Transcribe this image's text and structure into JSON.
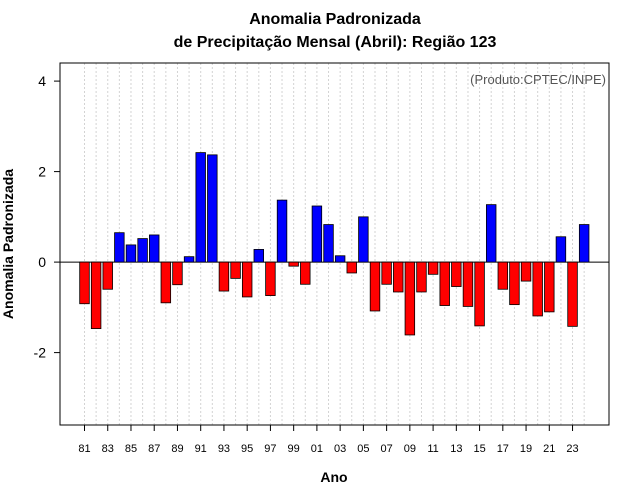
{
  "chart_data": {
    "type": "bar",
    "title_line1": "Anomalia Padronizada",
    "title_line2": "de Precipitação Mensal (Abril): Região 123",
    "xlabel": "Ano",
    "ylabel": "Anomalia Padronizada",
    "credit": "(Produto:CPTEC/INPE)",
    "ylim": [
      -3.6,
      4.4
    ],
    "yticks": [
      -2,
      0,
      2,
      4
    ],
    "yticks_labels": [
      "-2",
      "0",
      "2",
      "4"
    ],
    "grid": "vertical dotted",
    "colors": {
      "positive": "#0000ff",
      "negative": "#ff0000"
    },
    "categories": [
      "81",
      "82",
      "83",
      "84",
      "85",
      "86",
      "87",
      "88",
      "89",
      "90",
      "91",
      "92",
      "93",
      "94",
      "95",
      "96",
      "97",
      "98",
      "99",
      "00",
      "01",
      "02",
      "03",
      "04",
      "05",
      "06",
      "07",
      "08",
      "09",
      "10",
      "11",
      "12",
      "13",
      "14",
      "15",
      "16",
      "17",
      "18",
      "19",
      "20",
      "21",
      "22",
      "23",
      "24"
    ],
    "values": [
      -0.92,
      -1.47,
      -0.6,
      0.65,
      0.38,
      0.52,
      0.6,
      -0.9,
      -0.5,
      0.12,
      2.42,
      2.37,
      -0.64,
      -0.36,
      -0.77,
      0.28,
      -0.74,
      1.37,
      -0.09,
      -0.49,
      1.24,
      0.83,
      0.14,
      -0.24,
      1.0,
      -1.08,
      -0.49,
      -0.66,
      -1.61,
      -0.66,
      -0.27,
      -0.96,
      -0.54,
      -0.98,
      -1.41,
      1.27,
      -0.6,
      -0.94,
      -0.42,
      -1.19,
      -1.1,
      0.56,
      -1.42,
      0.83
    ],
    "xtick_labels": [
      "81",
      "83",
      "85",
      "87",
      "89",
      "91",
      "93",
      "95",
      "97",
      "99",
      "01",
      "03",
      "05",
      "07",
      "09",
      "11",
      "13",
      "15",
      "17",
      "19",
      "21",
      "23"
    ]
  }
}
